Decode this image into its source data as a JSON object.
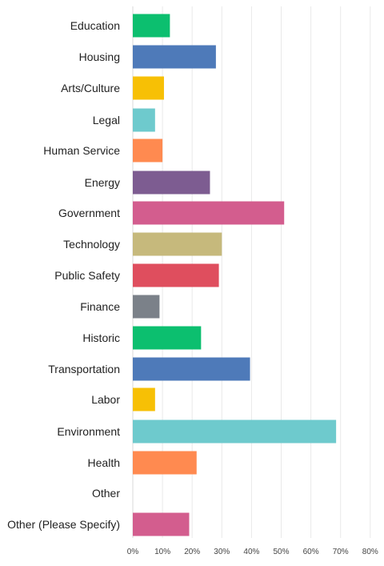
{
  "chart_data": {
    "type": "bar",
    "orientation": "horizontal",
    "categories": [
      "Education",
      "Housing",
      "Arts/Culture",
      "Legal",
      "Human Service",
      "Energy",
      "Government",
      "Technology",
      "Public Safety",
      "Finance",
      "Historic",
      "Transportation",
      "Labor",
      "Environment",
      "Health",
      "Other",
      "Other (Please Specify)"
    ],
    "values": [
      12.5,
      28,
      10.5,
      7.5,
      10,
      26,
      51,
      30,
      29,
      9,
      23,
      39.5,
      7.5,
      68.5,
      21.5,
      0,
      19
    ],
    "colors": [
      "#0cbf6f",
      "#4e7ab9",
      "#f7c005",
      "#6ecacd",
      "#ff8a50",
      "#7d5c91",
      "#d35d8e",
      "#c6b97c",
      "#df4e5e",
      "#7b8189",
      "#0cbf6f",
      "#4e7ab9",
      "#f7c005",
      "#6ecacd",
      "#ff8a50",
      "#7d5c91",
      "#d35d8e"
    ],
    "xlim": [
      0,
      80
    ],
    "xticks": [
      "0%",
      "10%",
      "20%",
      "30%",
      "40%",
      "50%",
      "60%",
      "70%",
      "80%"
    ],
    "grid": true,
    "legend": "none",
    "title": "",
    "xlabel": "",
    "ylabel": ""
  }
}
